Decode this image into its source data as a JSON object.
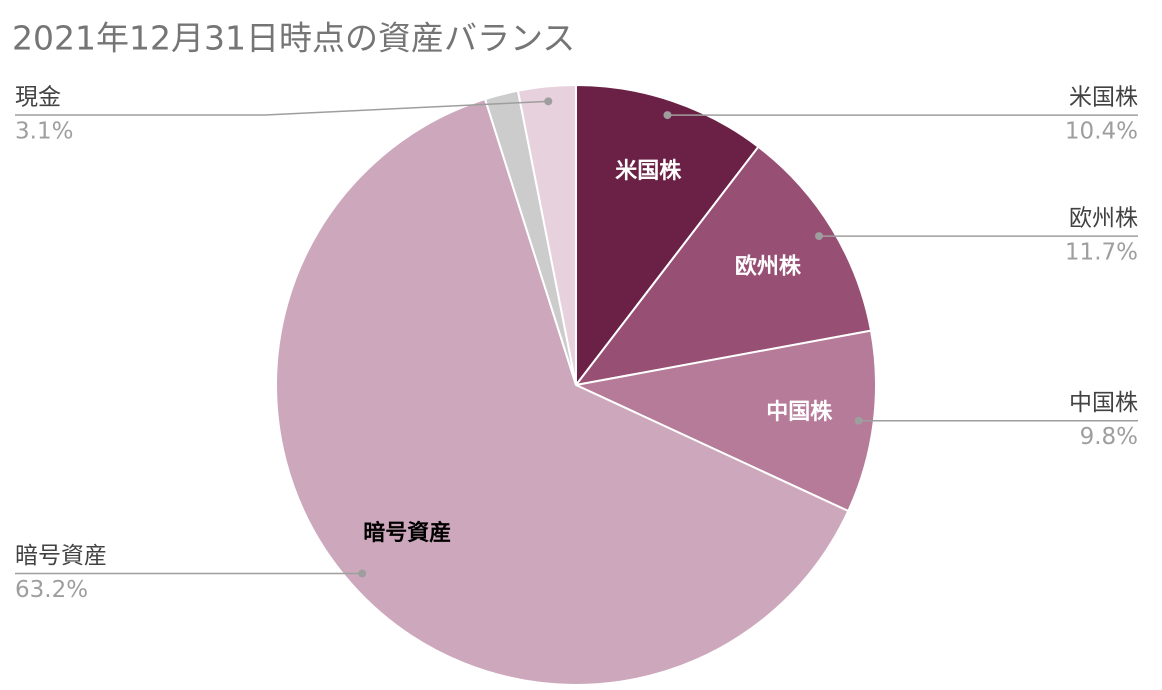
{
  "chart_data": {
    "type": "pie",
    "title": "2021年12月31日時点の資産バランス",
    "categories": [
      "米国株",
      "欧州株",
      "中国株",
      "暗号資産",
      null,
      "現金"
    ],
    "values": [
      10.4,
      11.7,
      9.8,
      63.2,
      1.8,
      3.1
    ],
    "value_labels": [
      "10.4%",
      "11.7%",
      "9.8%",
      "63.2%",
      null,
      "3.1%"
    ],
    "colors": [
      "#6b2145",
      "#974f73",
      "#b57b99",
      "#cda8bc",
      "#cccccc",
      "#e6d1dc"
    ]
  }
}
